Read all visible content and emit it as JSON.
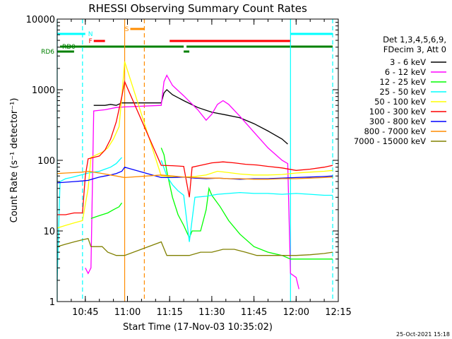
{
  "chart_data": {
    "type": "line",
    "title": "RHESSI Observing Summary Count Rates",
    "xlabel": "Start Time (17-Nov-03 10:35:02)",
    "ylabel": "Count Rate (s⁻¹ detector⁻¹)",
    "yscale": "log",
    "xlim": [
      "10:35",
      "12:15"
    ],
    "ylim": [
      1,
      10000
    ],
    "x_ticks": [
      "10:45",
      "11:00",
      "11:15",
      "11:30",
      "11:45",
      "12:00",
      "12:15"
    ],
    "y_ticks": [
      "1",
      "10",
      "100",
      "1000",
      "10000"
    ],
    "timestamp": "25-Oct-2021 15:18",
    "legend": {
      "placement": "right",
      "header": [
        "Det 1,3,4,5,6,9,",
        "FDecim 3, Att 0"
      ]
    },
    "series": [
      {
        "name": "3 - 6 keV",
        "color": "#000000",
        "points": [
          [
            "10:35",
            null
          ],
          [
            "10:47",
            null
          ],
          [
            "10:48",
            600
          ],
          [
            "10:52",
            600
          ],
          [
            "10:54",
            620
          ],
          [
            "10:56",
            600
          ],
          [
            "10:58",
            650
          ],
          [
            "10:59",
            650
          ],
          [
            "11:12",
            650
          ],
          [
            "11:13",
            900
          ],
          [
            "11:14",
            1000
          ],
          [
            "11:16",
            850
          ],
          [
            "11:20",
            700
          ],
          [
            "11:25",
            560
          ],
          [
            "11:30",
            480
          ],
          [
            "11:35",
            440
          ],
          [
            "11:40",
            400
          ],
          [
            "11:45",
            330
          ],
          [
            "11:50",
            260
          ],
          [
            "11:55",
            200
          ],
          [
            "11:57",
            170
          ],
          [
            "11:58",
            null
          ]
        ]
      },
      {
        "name": "6 - 12 keV",
        "color": "#ff00ff",
        "points": [
          [
            "10:45",
            3
          ],
          [
            "10:46",
            2.5
          ],
          [
            "10:47",
            3
          ],
          [
            "10:48",
            500
          ],
          [
            "10:52",
            520
          ],
          [
            "10:56",
            560
          ],
          [
            "10:59",
            570
          ],
          [
            "11:12",
            600
          ],
          [
            "11:13",
            1300
          ],
          [
            "11:14",
            1600
          ],
          [
            "11:16",
            1150
          ],
          [
            "11:20",
            820
          ],
          [
            "11:25",
            520
          ],
          [
            "11:28",
            370
          ],
          [
            "11:30",
            450
          ],
          [
            "11:32",
            620
          ],
          [
            "11:34",
            700
          ],
          [
            "11:36",
            620
          ],
          [
            "11:40",
            420
          ],
          [
            "11:45",
            250
          ],
          [
            "11:50",
            150
          ],
          [
            "11:55",
            100
          ],
          [
            "11:57",
            90
          ],
          [
            "11:58",
            2.5
          ],
          [
            "12:00",
            2.2
          ],
          [
            "12:01",
            1.5
          ]
        ]
      },
      {
        "name": "12 - 25 keV",
        "color": "#00ff00",
        "points": [
          [
            "10:35",
            null
          ],
          [
            "10:46",
            null
          ],
          [
            "10:47",
            15
          ],
          [
            "10:49",
            16
          ],
          [
            "10:51",
            17
          ],
          [
            "10:53",
            18
          ],
          [
            "10:55",
            20
          ],
          [
            "10:57",
            22
          ],
          [
            "10:58",
            25
          ],
          [
            "10:59",
            null
          ],
          [
            "11:12",
            150
          ],
          [
            "11:13",
            120
          ],
          [
            "11:14",
            70
          ],
          [
            "11:16",
            30
          ],
          [
            "11:18",
            17
          ],
          [
            "11:20",
            12
          ],
          [
            "11:22",
            8
          ],
          [
            "11:23",
            10
          ],
          [
            "11:26",
            10
          ],
          [
            "11:28",
            20
          ],
          [
            "11:29",
            40
          ],
          [
            "11:30",
            32
          ],
          [
            "11:33",
            22
          ],
          [
            "11:36",
            14
          ],
          [
            "11:40",
            9
          ],
          [
            "11:45",
            6
          ],
          [
            "11:50",
            5
          ],
          [
            "11:55",
            4.5
          ],
          [
            "11:58",
            4
          ],
          [
            "12:05",
            4
          ],
          [
            "12:10",
            4
          ],
          [
            "12:13",
            4
          ]
        ]
      },
      {
        "name": "25 - 50 keV",
        "color": "#00ffff",
        "points": [
          [
            "10:35",
            2
          ],
          [
            "10:36",
            50
          ],
          [
            "10:38",
            55
          ],
          [
            "10:40",
            57
          ],
          [
            "10:42",
            60
          ],
          [
            "10:44",
            63
          ],
          [
            "10:46",
            66
          ],
          [
            "10:48",
            68
          ],
          [
            "10:50",
            70
          ],
          [
            "10:52",
            75
          ],
          [
            "10:54",
            80
          ],
          [
            "10:56",
            90
          ],
          [
            "10:58",
            110
          ],
          [
            "10:59",
            null
          ],
          [
            "11:12",
            100
          ],
          [
            "11:14",
            60
          ],
          [
            "11:16",
            45
          ],
          [
            "11:18",
            37
          ],
          [
            "11:20",
            32
          ],
          [
            "11:22",
            7
          ],
          [
            "11:24",
            30
          ],
          [
            "11:28",
            31
          ],
          [
            "11:32",
            33
          ],
          [
            "11:36",
            34
          ],
          [
            "11:40",
            35
          ],
          [
            "11:45",
            34
          ],
          [
            "11:50",
            34
          ],
          [
            "11:55",
            33
          ],
          [
            "12:00",
            34
          ],
          [
            "12:05",
            33
          ],
          [
            "12:10",
            32
          ],
          [
            "12:13",
            32
          ]
        ]
      },
      {
        "name": "50 - 100 keV",
        "color": "#ffff00",
        "points": [
          [
            "10:35",
            11
          ],
          [
            "10:38",
            12
          ],
          [
            "10:41",
            13
          ],
          [
            "10:44",
            14
          ],
          [
            "10:46",
            40
          ],
          [
            "10:47",
            110
          ],
          [
            "10:49",
            120
          ],
          [
            "10:51",
            130
          ],
          [
            "10:53",
            150
          ],
          [
            "10:55",
            200
          ],
          [
            "10:57",
            300
          ],
          [
            "10:58",
            800
          ],
          [
            "10:59",
            2500
          ],
          [
            "11:12",
            60
          ],
          [
            "11:16",
            58
          ],
          [
            "11:20",
            58
          ],
          [
            "11:24",
            59
          ],
          [
            "11:28",
            62
          ],
          [
            "11:32",
            70
          ],
          [
            "11:36",
            67
          ],
          [
            "11:40",
            64
          ],
          [
            "11:45",
            62
          ],
          [
            "11:50",
            62
          ],
          [
            "11:55",
            63
          ],
          [
            "12:00",
            66
          ],
          [
            "12:05",
            68
          ],
          [
            "12:10",
            70
          ],
          [
            "12:13",
            72
          ]
        ]
      },
      {
        "name": "100 - 300 keV",
        "color": "#ff0000",
        "points": [
          [
            "10:35",
            17
          ],
          [
            "10:38",
            17
          ],
          [
            "10:41",
            18
          ],
          [
            "10:44",
            18
          ],
          [
            "10:45",
            60
          ],
          [
            "10:46",
            105
          ],
          [
            "10:48",
            110
          ],
          [
            "10:50",
            115
          ],
          [
            "10:52",
            140
          ],
          [
            "10:54",
            200
          ],
          [
            "10:56",
            350
          ],
          [
            "10:58",
            800
          ],
          [
            "10:59",
            1300
          ],
          [
            "11:12",
            85
          ],
          [
            "11:16",
            84
          ],
          [
            "11:20",
            82
          ],
          [
            "11:22",
            30
          ],
          [
            "11:23",
            80
          ],
          [
            "11:26",
            85
          ],
          [
            "11:30",
            92
          ],
          [
            "11:34",
            95
          ],
          [
            "11:38",
            92
          ],
          [
            "11:42",
            88
          ],
          [
            "11:46",
            86
          ],
          [
            "11:50",
            82
          ],
          [
            "11:55",
            78
          ],
          [
            "12:00",
            72
          ],
          [
            "12:05",
            75
          ],
          [
            "12:10",
            80
          ],
          [
            "12:13",
            85
          ]
        ]
      },
      {
        "name": "300 - 800 keV",
        "color": "#0000ff",
        "points": [
          [
            "10:35",
            48
          ],
          [
            "10:38",
            49
          ],
          [
            "10:41",
            50
          ],
          [
            "10:44",
            51
          ],
          [
            "10:46",
            52
          ],
          [
            "10:48",
            55
          ],
          [
            "10:50",
            58
          ],
          [
            "10:52",
            60
          ],
          [
            "10:54",
            62
          ],
          [
            "10:56",
            65
          ],
          [
            "10:58",
            70
          ],
          [
            "10:59",
            80
          ],
          [
            "11:12",
            57
          ],
          [
            "11:16",
            57
          ],
          [
            "11:20",
            58
          ],
          [
            "11:24",
            56
          ],
          [
            "11:28",
            55
          ],
          [
            "11:32",
            56
          ],
          [
            "11:36",
            55
          ],
          [
            "11:40",
            54
          ],
          [
            "11:45",
            55
          ],
          [
            "11:50",
            55
          ],
          [
            "11:55",
            56
          ],
          [
            "12:00",
            57
          ],
          [
            "12:05",
            58
          ],
          [
            "12:10",
            59
          ],
          [
            "12:13",
            60
          ]
        ]
      },
      {
        "name": "800 - 7000 keV",
        "color": "#ff8c00",
        "points": [
          [
            "10:35",
            65
          ],
          [
            "10:38",
            66
          ],
          [
            "10:41",
            67
          ],
          [
            "10:44",
            68
          ],
          [
            "10:46",
            70
          ],
          [
            "10:48",
            68
          ],
          [
            "10:50",
            66
          ],
          [
            "10:52",
            64
          ],
          [
            "10:54",
            62
          ],
          [
            "10:56",
            60
          ],
          [
            "10:58",
            58
          ],
          [
            "10:59",
            57
          ],
          [
            "11:12",
            62
          ],
          [
            "11:16",
            60
          ],
          [
            "11:20",
            58
          ],
          [
            "11:24",
            57
          ],
          [
            "11:28",
            56
          ],
          [
            "11:32",
            56
          ],
          [
            "11:36",
            55
          ],
          [
            "11:40",
            55
          ],
          [
            "11:45",
            54
          ],
          [
            "11:50",
            54
          ],
          [
            "11:55",
            55
          ],
          [
            "12:00",
            55
          ],
          [
            "12:05",
            56
          ],
          [
            "12:10",
            57
          ],
          [
            "12:13",
            58
          ]
        ]
      },
      {
        "name": "7000 - 15000 keV",
        "color": "#808000",
        "points": [
          [
            "10:35",
            6
          ],
          [
            "10:38",
            6.5
          ],
          [
            "10:41",
            7
          ],
          [
            "10:44",
            7.5
          ],
          [
            "10:46",
            7.8
          ],
          [
            "10:47",
            6
          ],
          [
            "10:49",
            6
          ],
          [
            "10:51",
            6
          ],
          [
            "10:53",
            5
          ],
          [
            "10:56",
            4.5
          ],
          [
            "10:59",
            4.5
          ],
          [
            "11:12",
            7
          ],
          [
            "11:14",
            4.5
          ],
          [
            "11:18",
            4.5
          ],
          [
            "11:22",
            4.5
          ],
          [
            "11:26",
            5
          ],
          [
            "11:30",
            5
          ],
          [
            "11:34",
            5.5
          ],
          [
            "11:38",
            5.5
          ],
          [
            "11:42",
            5
          ],
          [
            "11:46",
            4.5
          ],
          [
            "11:50",
            4.5
          ],
          [
            "11:55",
            4.5
          ],
          [
            "12:00",
            4.5
          ],
          [
            "12:05",
            4.6
          ],
          [
            "12:10",
            4.8
          ],
          [
            "12:13",
            5
          ]
        ]
      }
    ],
    "flags": [
      {
        "label": "N",
        "color": "#00ffff",
        "segments": [
          [
            "10:35",
            "10:45"
          ],
          [
            "11:58",
            "12:13"
          ]
        ]
      },
      {
        "label": "F",
        "color": "#ff0000",
        "segments": [
          [
            "10:48",
            "10:52"
          ],
          [
            "11:15",
            "11:58"
          ]
        ]
      },
      {
        "label": "S",
        "color": "#ff8c00",
        "segments": [
          [
            "11:01",
            "11:06"
          ]
        ]
      },
      {
        "label": "RD0",
        "color": "#008000",
        "segments": [
          [
            "10:36",
            "10:41"
          ],
          [
            "10:41",
            "11:20"
          ],
          [
            "11:21",
            "12:13"
          ]
        ]
      },
      {
        "label": "RD6",
        "color": "#008000",
        "segments": [
          [
            "10:35",
            "10:41"
          ],
          [
            "11:20",
            "11:22"
          ]
        ]
      }
    ],
    "vlines": [
      {
        "time": "10:35",
        "color": "#00ffff",
        "style": "solid"
      },
      {
        "time": "10:44",
        "color": "#00ffff",
        "style": "dashed"
      },
      {
        "time": "10:59",
        "color": "#ff8c00",
        "style": "solid"
      },
      {
        "time": "11:06",
        "color": "#ff8c00",
        "style": "dashed"
      },
      {
        "time": "11:58",
        "color": "#00ffff",
        "style": "solid"
      },
      {
        "time": "12:13",
        "color": "#00ffff",
        "style": "dashed"
      }
    ],
    "grid": false
  }
}
